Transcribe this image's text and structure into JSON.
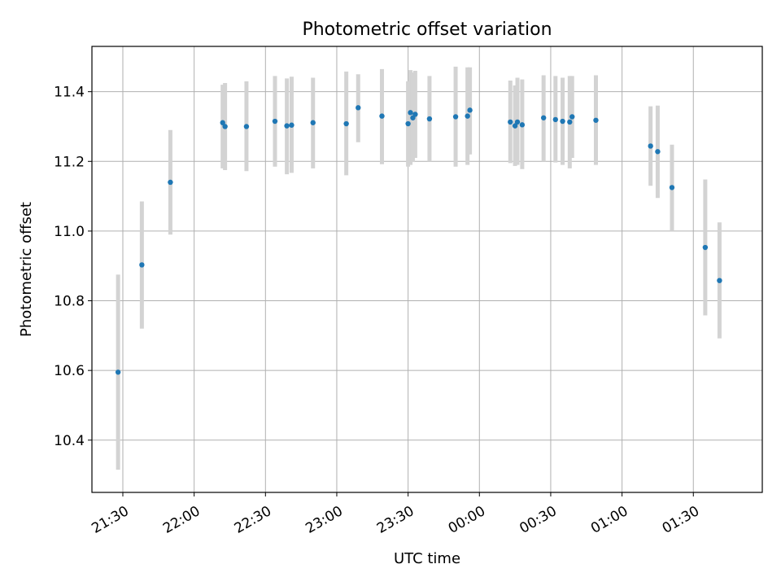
{
  "chart_data": {
    "type": "scatter",
    "title": "Photometric offset variation",
    "xlabel": "UTC time",
    "ylabel": "Photometric offset",
    "x_reference_date": "",
    "x_tick_labels": [
      "21:30",
      "22:00",
      "22:30",
      "23:00",
      "23:30",
      "00:00",
      "00:30",
      "01:00",
      "01:30"
    ],
    "x_tick_times": [
      "21:30",
      "22:00",
      "22:30",
      "23:00",
      "23:30",
      "00:00",
      "00:30",
      "01:00",
      "01:30"
    ],
    "xlim": [
      "21:17",
      "01:59"
    ],
    "ylim": [
      10.25,
      11.53
    ],
    "y_ticks": [
      10.4,
      10.6,
      10.8,
      11.0,
      11.2,
      11.4
    ],
    "y_tick_labels": [
      "10.4",
      "10.6",
      "10.8",
      "11.0",
      "11.2",
      "11.4"
    ],
    "grid": true,
    "legend": "none",
    "colors": {
      "point": "#1f77b4",
      "errorbar": "#d3d3d3",
      "grid": "#b0b0b0"
    },
    "series": [
      {
        "points": [
          {
            "time": "21:28",
            "y": 10.595,
            "lo": 10.315,
            "hi": 10.875
          },
          {
            "time": "21:38",
            "y": 10.903,
            "lo": 10.72,
            "hi": 11.085
          },
          {
            "time": "21:50",
            "y": 11.14,
            "lo": 10.99,
            "hi": 11.29
          },
          {
            "time": "22:12",
            "y": 11.311,
            "lo": 11.18,
            "hi": 11.42
          },
          {
            "time": "22:13",
            "y": 11.3,
            "lo": 11.175,
            "hi": 11.425
          },
          {
            "time": "22:22",
            "y": 11.3,
            "lo": 11.172,
            "hi": 11.43
          },
          {
            "time": "22:34",
            "y": 11.315,
            "lo": 11.185,
            "hi": 11.445
          },
          {
            "time": "22:39",
            "y": 11.302,
            "lo": 11.163,
            "hi": 11.438
          },
          {
            "time": "22:41",
            "y": 11.304,
            "lo": 11.167,
            "hi": 11.443
          },
          {
            "time": "22:50",
            "y": 11.311,
            "lo": 11.18,
            "hi": 11.44
          },
          {
            "time": "23:04",
            "y": 11.308,
            "lo": 11.16,
            "hi": 11.458
          },
          {
            "time": "23:09",
            "y": 11.354,
            "lo": 11.255,
            "hi": 11.45
          },
          {
            "time": "23:19",
            "y": 11.33,
            "lo": 11.192,
            "hi": 11.465
          },
          {
            "time": "23:30",
            "y": 11.308,
            "lo": 11.185,
            "hi": 11.43
          },
          {
            "time": "23:31",
            "y": 11.34,
            "lo": 11.19,
            "hi": 11.462
          },
          {
            "time": "23:32",
            "y": 11.325,
            "lo": 11.198,
            "hi": 11.455
          },
          {
            "time": "23:33",
            "y": 11.335,
            "lo": 11.21,
            "hi": 11.46
          },
          {
            "time": "23:39",
            "y": 11.322,
            "lo": 11.2,
            "hi": 11.445
          },
          {
            "time": "23:50",
            "y": 11.328,
            "lo": 11.185,
            "hi": 11.472
          },
          {
            "time": "23:55",
            "y": 11.33,
            "lo": 11.19,
            "hi": 11.47
          },
          {
            "time": "23:56",
            "y": 11.347,
            "lo": 11.22,
            "hi": 11.47
          },
          {
            "time": "00:13",
            "y": 11.313,
            "lo": 11.195,
            "hi": 11.432
          },
          {
            "time": "00:15",
            "y": 11.302,
            "lo": 11.187,
            "hi": 11.418
          },
          {
            "time": "00:16",
            "y": 11.313,
            "lo": 11.19,
            "hi": 11.44
          },
          {
            "time": "00:18",
            "y": 11.305,
            "lo": 11.178,
            "hi": 11.435
          },
          {
            "time": "00:27",
            "y": 11.325,
            "lo": 11.2,
            "hi": 11.447
          },
          {
            "time": "00:32",
            "y": 11.32,
            "lo": 11.197,
            "hi": 11.445
          },
          {
            "time": "00:35",
            "y": 11.315,
            "lo": 11.19,
            "hi": 11.44
          },
          {
            "time": "00:38",
            "y": 11.313,
            "lo": 11.18,
            "hi": 11.445
          },
          {
            "time": "00:39",
            "y": 11.328,
            "lo": 11.21,
            "hi": 11.445
          },
          {
            "time": "00:49",
            "y": 11.318,
            "lo": 11.19,
            "hi": 11.447
          },
          {
            "time": "01:12",
            "y": 11.244,
            "lo": 11.13,
            "hi": 11.358
          },
          {
            "time": "01:15",
            "y": 11.228,
            "lo": 11.095,
            "hi": 11.36
          },
          {
            "time": "01:21",
            "y": 11.125,
            "lo": 11.0,
            "hi": 11.248
          },
          {
            "time": "01:35",
            "y": 10.953,
            "lo": 10.758,
            "hi": 11.148
          },
          {
            "time": "01:41",
            "y": 10.858,
            "lo": 10.692,
            "hi": 11.025
          }
        ]
      }
    ]
  }
}
